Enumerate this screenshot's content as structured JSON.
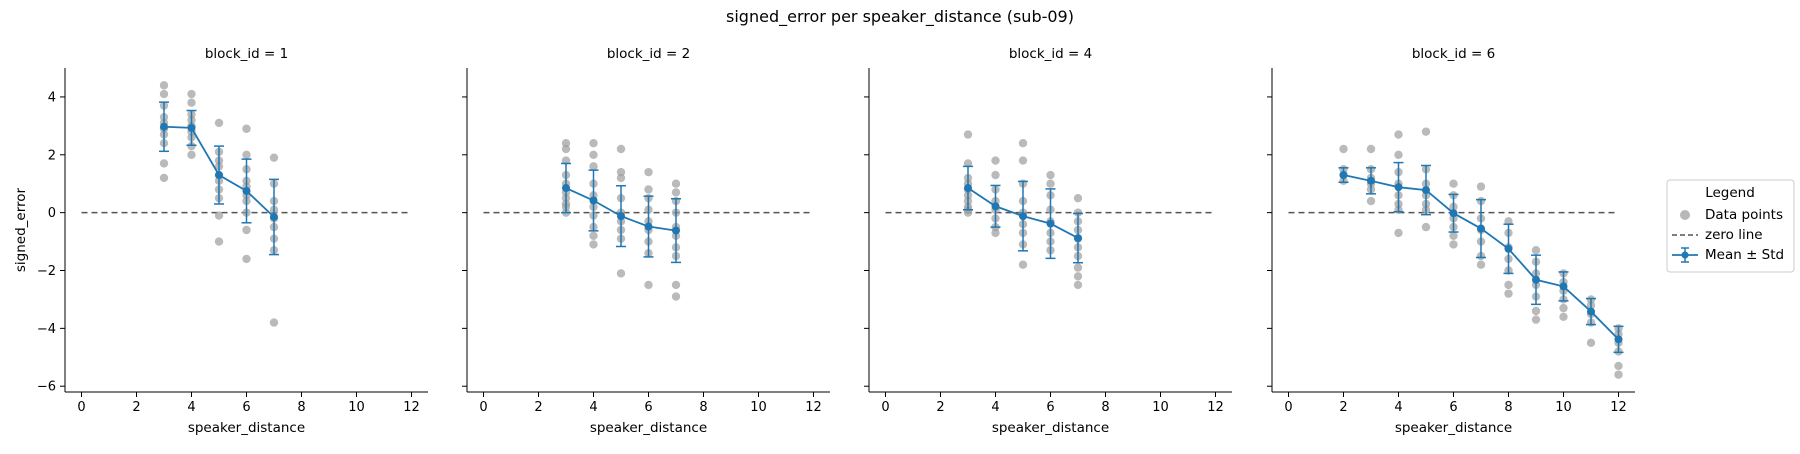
{
  "figure": {
    "suptitle": "signed_error per speaker_distance (sub-09)"
  },
  "legend": {
    "title": "Legend",
    "entries": [
      "Data points",
      "zero line",
      "Mean ± Std"
    ]
  },
  "colors": {
    "points": "#a0a0a0",
    "mean": "#1f77b4",
    "zero_line": "#555555",
    "axis": "#000000"
  },
  "chart_data": [
    {
      "type": "scatter",
      "title": "block_id = 1",
      "xlabel": "speaker_distance",
      "ylabel": "signed_error",
      "xlim": [
        -0.6,
        12.6
      ],
      "ylim": [
        -6.2,
        5.0
      ],
      "xticks": [
        0,
        2,
        4,
        6,
        8,
        10,
        12
      ],
      "yticks": [
        -6,
        -4,
        -2,
        0,
        2,
        4
      ],
      "zero_line": 0,
      "points": [
        [
          3,
          4.4
        ],
        [
          3,
          4.1
        ],
        [
          3,
          3.7
        ],
        [
          3,
          3.3
        ],
        [
          3,
          3.1
        ],
        [
          3,
          2.9
        ],
        [
          3,
          2.7
        ],
        [
          3,
          2.4
        ],
        [
          3,
          1.7
        ],
        [
          3,
          1.2
        ],
        [
          4,
          4.1
        ],
        [
          4,
          3.8
        ],
        [
          4,
          3.4
        ],
        [
          4,
          3.2
        ],
        [
          4,
          3.0
        ],
        [
          4,
          2.8
        ],
        [
          4,
          2.6
        ],
        [
          4,
          2.3
        ],
        [
          4,
          2.0
        ],
        [
          5,
          3.1
        ],
        [
          5,
          2.1
        ],
        [
          5,
          1.8
        ],
        [
          5,
          1.6
        ],
        [
          5,
          1.3
        ],
        [
          5,
          1.1
        ],
        [
          5,
          0.8
        ],
        [
          5,
          0.5
        ],
        [
          5,
          -0.1
        ],
        [
          5,
          -1.0
        ],
        [
          6,
          2.9
        ],
        [
          6,
          2.0
        ],
        [
          6,
          1.5
        ],
        [
          6,
          1.1
        ],
        [
          6,
          0.9
        ],
        [
          6,
          0.6
        ],
        [
          6,
          0.4
        ],
        [
          6,
          0.0
        ],
        [
          6,
          -0.6
        ],
        [
          6,
          -1.6
        ],
        [
          7,
          1.9
        ],
        [
          7,
          1.0
        ],
        [
          7,
          0.4
        ],
        [
          7,
          0.1
        ],
        [
          7,
          -0.2
        ],
        [
          7,
          -0.5
        ],
        [
          7,
          -0.9
        ],
        [
          7,
          -1.3
        ],
        [
          7,
          -3.8
        ]
      ],
      "mean": {
        "x": [
          3,
          4,
          5,
          6,
          7
        ],
        "y": [
          2.97,
          2.93,
          1.3,
          0.75,
          -0.15
        ],
        "std": [
          0.85,
          0.6,
          1.0,
          1.1,
          1.3
        ]
      }
    },
    {
      "type": "scatter",
      "title": "block_id = 2",
      "xlabel": "speaker_distance",
      "ylabel": "",
      "xlim": [
        -0.6,
        12.6
      ],
      "ylim": [
        -6.2,
        5.0
      ],
      "xticks": [
        0,
        2,
        4,
        6,
        8,
        10,
        12
      ],
      "yticks": [
        -6,
        -4,
        -2,
        0,
        2,
        4
      ],
      "zero_line": 0,
      "points": [
        [
          3,
          2.4
        ],
        [
          3,
          2.2
        ],
        [
          3,
          1.8
        ],
        [
          3,
          1.3
        ],
        [
          3,
          1.0
        ],
        [
          3,
          0.7
        ],
        [
          3,
          0.5
        ],
        [
          3,
          0.3
        ],
        [
          3,
          0.2
        ],
        [
          3,
          0.0
        ],
        [
          4,
          2.4
        ],
        [
          4,
          2.0
        ],
        [
          4,
          1.6
        ],
        [
          4,
          1.0
        ],
        [
          4,
          0.6
        ],
        [
          4,
          0.2
        ],
        [
          4,
          -0.1
        ],
        [
          4,
          -0.5
        ],
        [
          4,
          -0.8
        ],
        [
          4,
          -1.1
        ],
        [
          5,
          2.2
        ],
        [
          5,
          1.4
        ],
        [
          5,
          1.2
        ],
        [
          5,
          0.5
        ],
        [
          5,
          0.0
        ],
        [
          5,
          -0.3
        ],
        [
          5,
          -0.6
        ],
        [
          5,
          -0.9
        ],
        [
          5,
          -2.1
        ],
        [
          6,
          1.4
        ],
        [
          6,
          0.8
        ],
        [
          6,
          0.5
        ],
        [
          6,
          0.1
        ],
        [
          6,
          -0.3
        ],
        [
          6,
          -0.6
        ],
        [
          6,
          -1.0
        ],
        [
          6,
          -1.4
        ],
        [
          6,
          -2.5
        ],
        [
          7,
          1.0
        ],
        [
          7,
          0.7
        ],
        [
          7,
          0.4
        ],
        [
          7,
          0.0
        ],
        [
          7,
          -0.5
        ],
        [
          7,
          -0.8
        ],
        [
          7,
          -1.2
        ],
        [
          7,
          -1.5
        ],
        [
          7,
          -2.5
        ],
        [
          7,
          -2.9
        ]
      ],
      "mean": {
        "x": [
          3,
          4,
          5,
          6,
          7
        ],
        "y": [
          0.85,
          0.42,
          -0.12,
          -0.48,
          -0.62
        ],
        "std": [
          0.85,
          1.05,
          1.05,
          1.05,
          1.1
        ]
      }
    },
    {
      "type": "scatter",
      "title": "block_id = 4",
      "xlabel": "speaker_distance",
      "ylabel": "",
      "xlim": [
        -0.6,
        12.6
      ],
      "ylim": [
        -6.2,
        5.0
      ],
      "xticks": [
        0,
        2,
        4,
        6,
        8,
        10,
        12
      ],
      "yticks": [
        -6,
        -4,
        -2,
        0,
        2,
        4
      ],
      "zero_line": 0,
      "points": [
        [
          3,
          2.7
        ],
        [
          3,
          1.7
        ],
        [
          3,
          1.2
        ],
        [
          3,
          1.0
        ],
        [
          3,
          0.8
        ],
        [
          3,
          0.6
        ],
        [
          3,
          0.4
        ],
        [
          3,
          0.2
        ],
        [
          3,
          0.1
        ],
        [
          3,
          0.0
        ],
        [
          4,
          1.8
        ],
        [
          4,
          1.3
        ],
        [
          4,
          0.8
        ],
        [
          4,
          0.4
        ],
        [
          4,
          0.1
        ],
        [
          4,
          -0.2
        ],
        [
          4,
          -0.5
        ],
        [
          4,
          -0.7
        ],
        [
          5,
          2.4
        ],
        [
          5,
          1.8
        ],
        [
          5,
          1.0
        ],
        [
          5,
          0.4
        ],
        [
          5,
          0.0
        ],
        [
          5,
          -0.4
        ],
        [
          5,
          -0.7
        ],
        [
          5,
          -1.1
        ],
        [
          5,
          -1.8
        ],
        [
          6,
          1.3
        ],
        [
          6,
          1.0
        ],
        [
          6,
          0.6
        ],
        [
          6,
          0.1
        ],
        [
          6,
          -0.3
        ],
        [
          6,
          -0.7
        ],
        [
          6,
          -1.0
        ],
        [
          6,
          -1.3
        ],
        [
          7,
          0.5
        ],
        [
          7,
          0.0
        ],
        [
          7,
          -0.3
        ],
        [
          7,
          -0.6
        ],
        [
          7,
          -0.9
        ],
        [
          7,
          -1.2
        ],
        [
          7,
          -1.5
        ],
        [
          7,
          -1.9
        ],
        [
          7,
          -2.2
        ],
        [
          7,
          -2.5
        ]
      ],
      "mean": {
        "x": [
          3,
          4,
          5,
          6,
          7
        ],
        "y": [
          0.85,
          0.22,
          -0.12,
          -0.38,
          -0.88
        ],
        "std": [
          0.75,
          0.72,
          1.2,
          1.2,
          0.85
        ]
      }
    },
    {
      "type": "scatter",
      "title": "block_id = 6",
      "xlabel": "speaker_distance",
      "ylabel": "",
      "xlim": [
        -0.6,
        12.6
      ],
      "ylim": [
        -6.2,
        5.0
      ],
      "xticks": [
        0,
        2,
        4,
        6,
        8,
        10,
        12
      ],
      "yticks": [
        -6,
        -4,
        -2,
        0,
        2,
        4
      ],
      "zero_line": 0,
      "points": [
        [
          2,
          2.2
        ],
        [
          2,
          1.5
        ],
        [
          2,
          1.3
        ],
        [
          2,
          1.1
        ],
        [
          3,
          2.2
        ],
        [
          3,
          1.5
        ],
        [
          3,
          1.2
        ],
        [
          3,
          1.0
        ],
        [
          3,
          0.8
        ],
        [
          3,
          0.4
        ],
        [
          4,
          2.7
        ],
        [
          4,
          2.0
        ],
        [
          4,
          1.4
        ],
        [
          4,
          1.0
        ],
        [
          4,
          0.6
        ],
        [
          4,
          0.3
        ],
        [
          4,
          0.1
        ],
        [
          4,
          -0.7
        ],
        [
          5,
          2.8
        ],
        [
          5,
          1.5
        ],
        [
          5,
          1.0
        ],
        [
          5,
          0.6
        ],
        [
          5,
          0.3
        ],
        [
          5,
          0.1
        ],
        [
          5,
          -0.5
        ],
        [
          6,
          1.0
        ],
        [
          6,
          0.6
        ],
        [
          6,
          0.2
        ],
        [
          6,
          -0.2
        ],
        [
          6,
          -0.5
        ],
        [
          6,
          -0.8
        ],
        [
          6,
          -1.1
        ],
        [
          7,
          0.9
        ],
        [
          7,
          0.4
        ],
        [
          7,
          -0.2
        ],
        [
          7,
          -0.6
        ],
        [
          7,
          -1.0
        ],
        [
          7,
          -1.5
        ],
        [
          7,
          -1.8
        ],
        [
          8,
          -0.3
        ],
        [
          8,
          -0.7
        ],
        [
          8,
          -1.2
        ],
        [
          8,
          -1.6
        ],
        [
          8,
          -2.0
        ],
        [
          8,
          -2.5
        ],
        [
          8,
          -2.8
        ],
        [
          9,
          -1.3
        ],
        [
          9,
          -1.7
        ],
        [
          9,
          -2.1
        ],
        [
          9,
          -2.5
        ],
        [
          9,
          -2.9
        ],
        [
          9,
          -3.4
        ],
        [
          9,
          -3.7
        ],
        [
          10,
          -2.1
        ],
        [
          10,
          -2.4
        ],
        [
          10,
          -2.7
        ],
        [
          10,
          -3.0
        ],
        [
          10,
          -3.3
        ],
        [
          10,
          -3.6
        ],
        [
          11,
          -3.0
        ],
        [
          11,
          -3.2
        ],
        [
          11,
          -3.5
        ],
        [
          11,
          -3.8
        ],
        [
          11,
          -4.5
        ],
        [
          12,
          -4.0
        ],
        [
          12,
          -4.2
        ],
        [
          12,
          -4.5
        ],
        [
          12,
          -4.8
        ],
        [
          12,
          -5.3
        ],
        [
          12,
          -5.6
        ]
      ],
      "mean": {
        "x": [
          2,
          3,
          4,
          5,
          6,
          7,
          8,
          9,
          10,
          11,
          12
        ],
        "y": [
          1.3,
          1.1,
          0.88,
          0.78,
          -0.02,
          -0.55,
          -1.25,
          -2.32,
          -2.55,
          -3.42,
          -4.38
        ],
        "std": [
          0.25,
          0.45,
          0.85,
          0.85,
          0.65,
          1.0,
          0.85,
          0.85,
          0.5,
          0.45,
          0.45
        ]
      }
    }
  ]
}
